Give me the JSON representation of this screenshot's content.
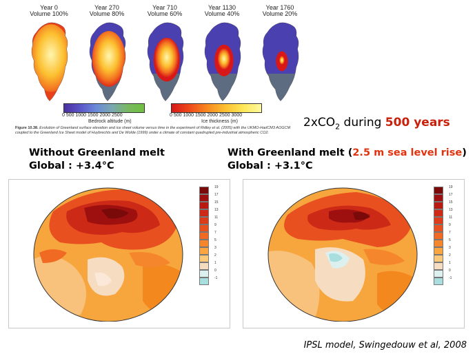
{
  "greenland_panels": [
    {
      "year": "Year 0",
      "volume": "Volume 100%",
      "ice": 1.0
    },
    {
      "year": "Year 270",
      "volume": "Volume 80%",
      "ice": 0.8
    },
    {
      "year": "Year 710",
      "volume": "Volume 60%",
      "ice": 0.6
    },
    {
      "year": "Year 1130",
      "volume": "Volume 40%",
      "ice": 0.4
    },
    {
      "year": "Year 1760",
      "volume": "Volume 20%",
      "ice": 0.2
    }
  ],
  "bedrock_bar": {
    "ticks": "0    500  1000  1500  2000  2500",
    "unit": "Bedrock altitude (m)"
  },
  "ice_bar": {
    "ticks": "0    500  1000  1500  2000  2500  3000",
    "unit": "Ice thickness (m)"
  },
  "figure_caption": {
    "label": "Figure 10.38.",
    "text": "Evolution of Greenland surface elevation and ice sheet volume versus time in the experiment of Ridley et al. (2005) with the UKMO-HadCM3 AOGCM coupled to the Greenland Ice Sheet model of Huybrechts and De Wolde (1999) under a climate of constant quadrupled pre-industrial atmospheric CO2."
  },
  "headline": {
    "prefix": "2xCO",
    "sub": "2",
    "middle": " during ",
    "highlight": "500 years"
  },
  "scenario_left": {
    "title": "Without  Greenland melt",
    "global": "Global : +3.4°C"
  },
  "scenario_right": {
    "title_start": "With Greenland melt (",
    "title_highlight": "2.5 m sea level rise",
    "title_end": ")",
    "global": "Global : +3.1°C"
  },
  "legend_values": [
    "19",
    "17",
    "15",
    "13",
    "11",
    "9",
    "7",
    "5",
    "3",
    "2",
    "1",
    "0",
    "-1"
  ],
  "legend_colors": [
    "#7a0a0a",
    "#9e1010",
    "#b81a12",
    "#cc2a16",
    "#dc3c1a",
    "#e85020",
    "#f06a24",
    "#f5862c",
    "#f9a640",
    "#fcc87a",
    "#f6dcc0",
    "#ddf0f0",
    "#a8dede"
  ],
  "credit": "IPSL model, Swingedouw et al, 2008"
}
